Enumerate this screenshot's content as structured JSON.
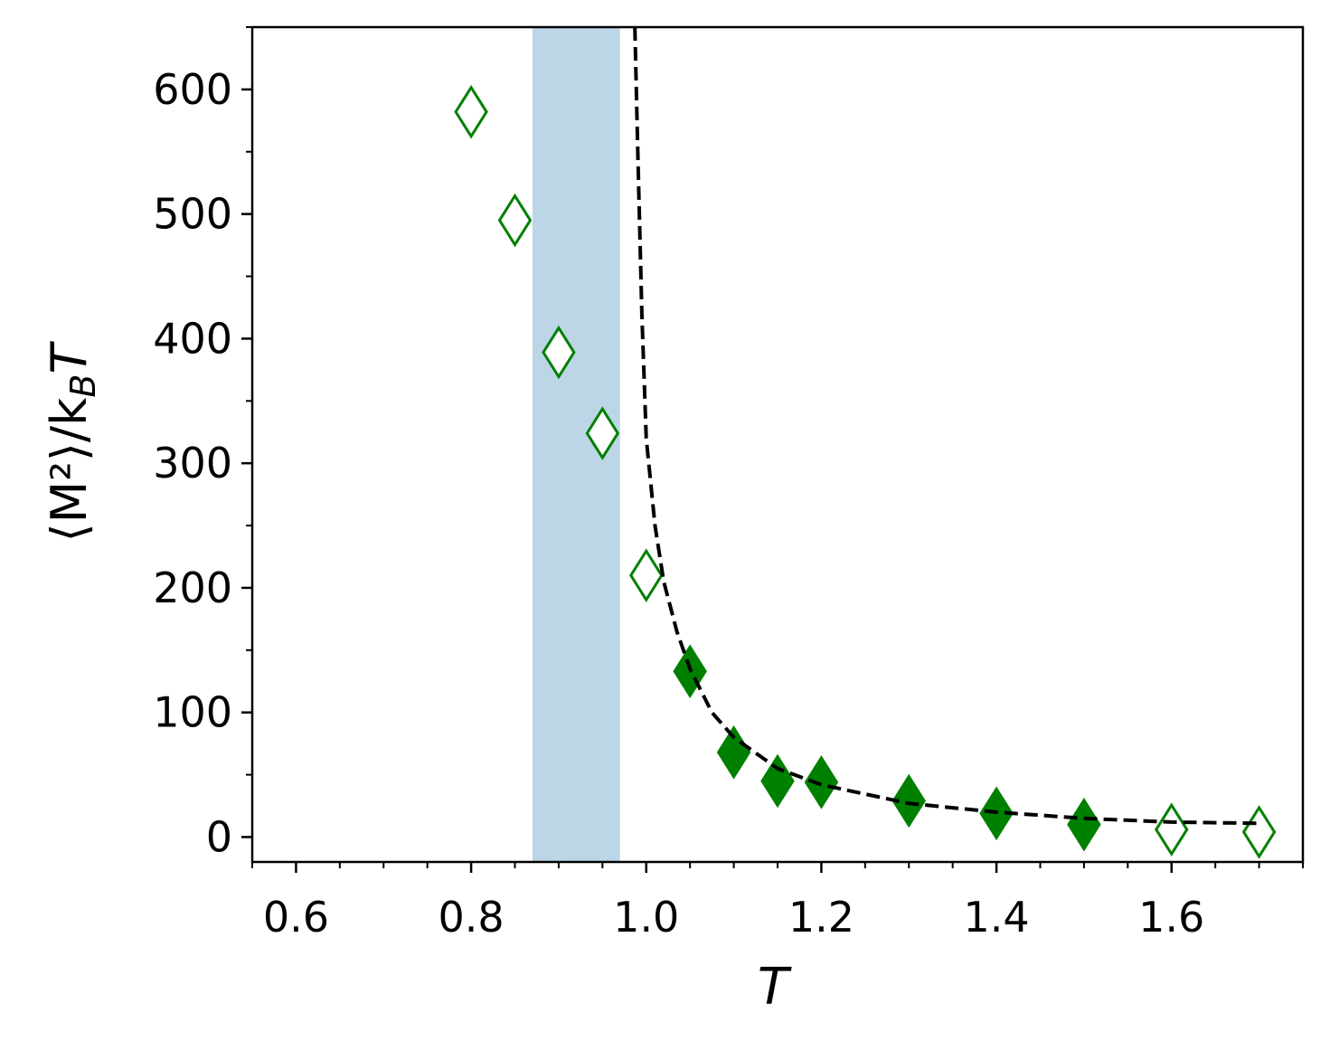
{
  "chart_data": {
    "type": "scatter",
    "xlabel": "T",
    "ylabel": "⟨M²⟩/kBT",
    "xlim": [
      0.55,
      1.75
    ],
    "ylim": [
      -20,
      650
    ],
    "xticks": [
      {
        "value": 0.6,
        "label": "0.6"
      },
      {
        "value": 0.8,
        "label": "0.8"
      },
      {
        "value": 1.0,
        "label": "1.0"
      },
      {
        "value": 1.2,
        "label": "1.2"
      },
      {
        "value": 1.4,
        "label": "1.4"
      },
      {
        "value": 1.6,
        "label": "1.6"
      }
    ],
    "xminorticks": [
      0.55,
      0.65,
      0.7,
      0.75,
      0.85,
      0.9,
      0.95,
      1.05,
      1.1,
      1.15,
      1.25,
      1.3,
      1.35,
      1.45,
      1.5,
      1.55,
      1.65,
      1.7,
      1.75
    ],
    "yticks": [
      0,
      100,
      200,
      300,
      400,
      500,
      600
    ],
    "yminorticks": [
      50,
      150,
      250,
      350,
      450,
      550,
      650
    ],
    "shaded_band": {
      "x": [
        0.87,
        0.97
      ],
      "color": "#bcd6e8"
    },
    "series": [
      {
        "kind": "open",
        "color": "#008000",
        "x": [
          0.8,
          0.85,
          0.9,
          0.95,
          1.0,
          1.6,
          1.7
        ],
        "values": [
          582,
          495,
          389,
          324,
          210,
          6,
          4
        ]
      },
      {
        "kind": "filled",
        "color": "#008000",
        "x": [
          1.05,
          1.1,
          1.15,
          1.2,
          1.3,
          1.4,
          1.5
        ],
        "values": [
          133,
          68,
          45,
          44,
          29,
          19,
          10
        ]
      },
      {
        "kind": "dashed-line",
        "color": "#000000",
        "x": [
          0.987,
          0.99,
          0.995,
          1.0,
          1.01,
          1.02,
          1.035,
          1.05,
          1.075,
          1.1,
          1.15,
          1.2,
          1.3,
          1.4,
          1.5,
          1.6,
          1.7
        ],
        "values": [
          650,
          560,
          420,
          320,
          250,
          205,
          165,
          135,
          100,
          80,
          55,
          42,
          27,
          20,
          15,
          12,
          11
        ]
      }
    ]
  }
}
